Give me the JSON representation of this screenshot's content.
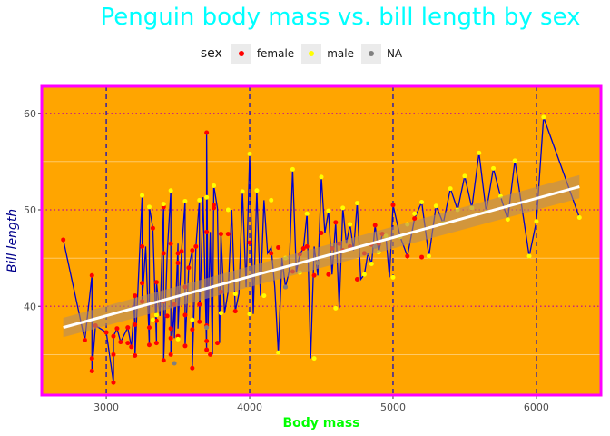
{
  "chart_data": {
    "type": "scatter",
    "title": "Penguin body mass vs. bill length by sex",
    "xlabel": "Body mass",
    "ylabel": "Bill length",
    "xlim": [
      2550,
      6450
    ],
    "ylim": [
      30.8,
      62.8
    ],
    "x_ticks": [
      3000,
      4000,
      5000,
      6000
    ],
    "y_ticks": [
      40,
      50,
      60
    ],
    "legend_title": "sex",
    "legend": [
      {
        "label": "female",
        "color": "#ff0000"
      },
      {
        "label": "male",
        "color": "#ffff00"
      },
      {
        "label": "NA",
        "color": "#808080"
      }
    ],
    "colors": {
      "panel": "#ffa500",
      "border": "#ff00ff",
      "line": "#0000cd",
      "smooth": "#ffffff",
      "ribbon": "#b48c64",
      "vline": "#0000cd",
      "hline": "#c8287a",
      "title": "#00ffff",
      "xlabel": "#00ff00",
      "ylabel": "#00008b"
    },
    "smooth": {
      "x": [
        2700,
        6300
      ],
      "y": [
        37.8,
        52.4
      ],
      "ci_start": [
        36.8,
        38.8
      ],
      "ci_end": [
        51.2,
        53.6
      ]
    },
    "series": [
      {
        "name": "female",
        "color": "#ff0000",
        "points": [
          [
            2700,
            46.9
          ],
          [
            2850,
            36.5
          ],
          [
            2900,
            43.2
          ],
          [
            2900,
            33.3
          ],
          [
            2900,
            34.6
          ],
          [
            2925,
            38.0
          ],
          [
            3000,
            37.3
          ],
          [
            3050,
            36.9
          ],
          [
            3050,
            32.1
          ],
          [
            3050,
            35.0
          ],
          [
            3075,
            37.7
          ],
          [
            3100,
            36.3
          ],
          [
            3150,
            37.8
          ],
          [
            3150,
            36.2
          ],
          [
            3175,
            35.8
          ],
          [
            3200,
            38.1
          ],
          [
            3200,
            41.1
          ],
          [
            3200,
            34.9
          ],
          [
            3250,
            42.4
          ],
          [
            3250,
            40.5
          ],
          [
            3250,
            46.2
          ],
          [
            3300,
            36.0
          ],
          [
            3300,
            37.8
          ],
          [
            3325,
            48.1
          ],
          [
            3350,
            36.2
          ],
          [
            3350,
            38.5
          ],
          [
            3350,
            42.5
          ],
          [
            3400,
            40.5
          ],
          [
            3400,
            34.4
          ],
          [
            3400,
            50.3
          ],
          [
            3400,
            45.5
          ],
          [
            3425,
            39.0
          ],
          [
            3450,
            35.0
          ],
          [
            3450,
            36.7
          ],
          [
            3450,
            46.5
          ],
          [
            3450,
            37.7
          ],
          [
            3475,
            40.2
          ],
          [
            3500,
            36.9
          ],
          [
            3500,
            44.5
          ],
          [
            3500,
            45.5
          ],
          [
            3525,
            45.7
          ],
          [
            3550,
            39.1
          ],
          [
            3550,
            35.9
          ],
          [
            3550,
            42.0
          ],
          [
            3575,
            44.0
          ],
          [
            3600,
            45.8
          ],
          [
            3600,
            37.6
          ],
          [
            3600,
            33.6
          ],
          [
            3625,
            46.2
          ],
          [
            3650,
            40.2
          ],
          [
            3650,
            38.4
          ],
          [
            3700,
            35.5
          ],
          [
            3700,
            36.4
          ],
          [
            3700,
            38.0
          ],
          [
            3700,
            58.0
          ],
          [
            3700,
            47.7
          ],
          [
            3725,
            35.0
          ],
          [
            3750,
            50.2
          ],
          [
            3750,
            50.5
          ],
          [
            3775,
            36.2
          ],
          [
            3800,
            47.5
          ],
          [
            3800,
            41.5
          ],
          [
            3850,
            47.5
          ],
          [
            3900,
            39.5
          ],
          [
            4000,
            46.6
          ],
          [
            4150,
            45.5
          ],
          [
            4200,
            46.1
          ],
          [
            4250,
            42.0
          ],
          [
            4300,
            43.6
          ],
          [
            4350,
            45.4
          ],
          [
            4375,
            46.0
          ],
          [
            4400,
            46.2
          ],
          [
            4450,
            43.2
          ],
          [
            4500,
            47.6
          ],
          [
            4550,
            43.3
          ],
          [
            4575,
            46.0
          ],
          [
            4600,
            48.7
          ],
          [
            4625,
            46.5
          ],
          [
            4650,
            45.8
          ],
          [
            4700,
            46.2
          ],
          [
            4750,
            42.8
          ],
          [
            4800,
            45.5
          ],
          [
            4850,
            46.4
          ],
          [
            4875,
            48.4
          ],
          [
            4900,
            46.5
          ],
          [
            4925,
            47.5
          ],
          [
            5000,
            50.5
          ],
          [
            5100,
            45.2
          ],
          [
            5150,
            49.1
          ],
          [
            5200,
            45.1
          ]
        ]
      },
      {
        "name": "male",
        "color": "#ffff00",
        "points": [
          [
            3250,
            51.5
          ],
          [
            3300,
            50.3
          ],
          [
            3325,
            38.6
          ],
          [
            3350,
            39.1
          ],
          [
            3400,
            50.6
          ],
          [
            3450,
            52.0
          ],
          [
            3500,
            36.6
          ],
          [
            3550,
            50.9
          ],
          [
            3600,
            38.6
          ],
          [
            3650,
            51.0
          ],
          [
            3700,
            51.3
          ],
          [
            3750,
            52.5
          ],
          [
            3800,
            39.3
          ],
          [
            3850,
            50.0
          ],
          [
            3900,
            41.3
          ],
          [
            3950,
            51.9
          ],
          [
            4000,
            55.8
          ],
          [
            4000,
            39.2
          ],
          [
            4050,
            52.0
          ],
          [
            4100,
            41.1
          ],
          [
            4150,
            51.0
          ],
          [
            4200,
            35.2
          ],
          [
            4250,
            45.0
          ],
          [
            4300,
            54.2
          ],
          [
            4350,
            43.5
          ],
          [
            4400,
            49.6
          ],
          [
            4450,
            34.6
          ],
          [
            4500,
            53.4
          ],
          [
            4550,
            49.9
          ],
          [
            4600,
            39.8
          ],
          [
            4650,
            50.2
          ],
          [
            4700,
            48.5
          ],
          [
            4750,
            50.7
          ],
          [
            4800,
            43.3
          ],
          [
            4850,
            44.4
          ],
          [
            4900,
            45.6
          ],
          [
            4950,
            47.3
          ],
          [
            5000,
            43.0
          ],
          [
            5050,
            47.2
          ],
          [
            5100,
            48.5
          ],
          [
            5150,
            49.6
          ],
          [
            5200,
            50.8
          ],
          [
            5250,
            45.2
          ],
          [
            5300,
            50.4
          ],
          [
            5350,
            48.6
          ],
          [
            5400,
            52.2
          ],
          [
            5450,
            50.0
          ],
          [
            5500,
            53.5
          ],
          [
            5550,
            50.2
          ],
          [
            5600,
            55.9
          ],
          [
            5650,
            49.8
          ],
          [
            5700,
            54.3
          ],
          [
            5750,
            51.4
          ],
          [
            5800,
            49.0
          ],
          [
            5850,
            55.1
          ],
          [
            5950,
            45.2
          ],
          [
            6000,
            48.8
          ],
          [
            6050,
            59.6
          ],
          [
            6300,
            49.2
          ]
        ]
      },
      {
        "name": "NA",
        "color": "#808080",
        "points": [
          [
            3475,
            34.1
          ],
          [
            3700,
            37.8
          ],
          [
            4250,
            42.0
          ],
          [
            4475,
            44.5
          ],
          [
            4875,
            46.2
          ]
        ]
      }
    ],
    "path": [
      [
        2700,
        46.9
      ],
      [
        2850,
        36.5
      ],
      [
        2900,
        43.2
      ],
      [
        2900,
        33.3
      ],
      [
        2925,
        38.0
      ],
      [
        3000,
        37.3
      ],
      [
        3050,
        32.1
      ],
      [
        3050,
        36.9
      ],
      [
        3075,
        37.7
      ],
      [
        3100,
        36.3
      ],
      [
        3150,
        37.8
      ],
      [
        3175,
        35.8
      ],
      [
        3200,
        41.1
      ],
      [
        3200,
        34.9
      ],
      [
        3250,
        51.5
      ],
      [
        3250,
        40.5
      ],
      [
        3275,
        46.2
      ],
      [
        3300,
        36.0
      ],
      [
        3300,
        50.3
      ],
      [
        3325,
        48.1
      ],
      [
        3350,
        36.2
      ],
      [
        3350,
        42.5
      ],
      [
        3375,
        39.0
      ],
      [
        3400,
        50.6
      ],
      [
        3400,
        34.4
      ],
      [
        3425,
        45.5
      ],
      [
        3450,
        52.0
      ],
      [
        3450,
        35.0
      ],
      [
        3475,
        40.2
      ],
      [
        3475,
        36.7
      ],
      [
        3500,
        46.5
      ],
      [
        3500,
        37.7
      ],
      [
        3525,
        45.7
      ],
      [
        3550,
        50.9
      ],
      [
        3550,
        35.9
      ],
      [
        3575,
        44.0
      ],
      [
        3600,
        45.8
      ],
      [
        3600,
        33.6
      ],
      [
        3625,
        46.2
      ],
      [
        3650,
        51.0
      ],
      [
        3650,
        38.4
      ],
      [
        3675,
        51.3
      ],
      [
        3700,
        35.5
      ],
      [
        3700,
        58.0
      ],
      [
        3710,
        38.0
      ],
      [
        3725,
        47.7
      ],
      [
        3740,
        35.0
      ],
      [
        3750,
        52.5
      ],
      [
        3775,
        50.2
      ],
      [
        3790,
        36.2
      ],
      [
        3800,
        47.5
      ],
      [
        3825,
        39.3
      ],
      [
        3850,
        41.5
      ],
      [
        3875,
        50.0
      ],
      [
        3900,
        39.5
      ],
      [
        3925,
        41.3
      ],
      [
        3950,
        51.9
      ],
      [
        3975,
        42.0
      ],
      [
        4000,
        55.8
      ],
      [
        4025,
        39.2
      ],
      [
        4050,
        52.0
      ],
      [
        4075,
        41.1
      ],
      [
        4100,
        51.0
      ],
      [
        4125,
        45.5
      ],
      [
        4150,
        46.1
      ],
      [
        4175,
        42.0
      ],
      [
        4200,
        35.2
      ],
      [
        4225,
        45.0
      ],
      [
        4250,
        42.0
      ],
      [
        4275,
        43.6
      ],
      [
        4300,
        54.2
      ],
      [
        4325,
        43.5
      ],
      [
        4350,
        45.4
      ],
      [
        4375,
        46.0
      ],
      [
        4400,
        49.6
      ],
      [
        4425,
        34.6
      ],
      [
        4450,
        46.2
      ],
      [
        4475,
        43.2
      ],
      [
        4500,
        53.4
      ],
      [
        4525,
        47.6
      ],
      [
        4550,
        49.9
      ],
      [
        4575,
        43.3
      ],
      [
        4600,
        48.7
      ],
      [
        4625,
        39.8
      ],
      [
        4650,
        50.2
      ],
      [
        4675,
        46.5
      ],
      [
        4700,
        48.5
      ],
      [
        4725,
        45.8
      ],
      [
        4750,
        50.7
      ],
      [
        4775,
        42.8
      ],
      [
        4800,
        43.3
      ],
      [
        4825,
        45.5
      ],
      [
        4850,
        44.4
      ],
      [
        4875,
        48.4
      ],
      [
        4900,
        45.6
      ],
      [
        4925,
        47.5
      ],
      [
        4950,
        47.3
      ],
      [
        4975,
        43.0
      ],
      [
        5000,
        50.5
      ],
      [
        5050,
        47.2
      ],
      [
        5100,
        45.2
      ],
      [
        5150,
        49.1
      ],
      [
        5200,
        50.8
      ],
      [
        5250,
        45.2
      ],
      [
        5300,
        50.4
      ],
      [
        5350,
        48.6
      ],
      [
        5400,
        52.2
      ],
      [
        5450,
        50.0
      ],
      [
        5500,
        53.5
      ],
      [
        5550,
        50.2
      ],
      [
        5600,
        55.9
      ],
      [
        5650,
        49.8
      ],
      [
        5700,
        54.3
      ],
      [
        5750,
        51.4
      ],
      [
        5800,
        49.0
      ],
      [
        5850,
        55.1
      ],
      [
        5950,
        45.2
      ],
      [
        6000,
        48.8
      ],
      [
        6050,
        59.6
      ],
      [
        6300,
        49.2
      ]
    ]
  }
}
